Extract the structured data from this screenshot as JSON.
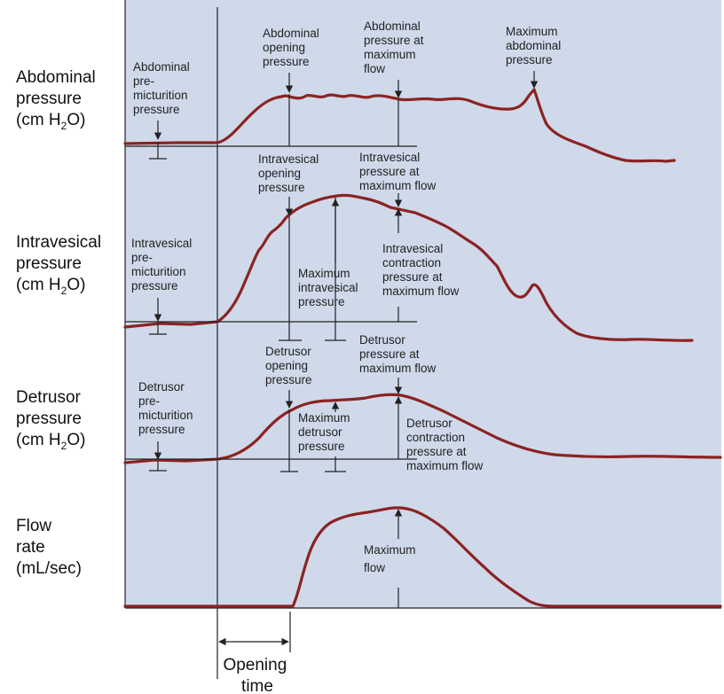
{
  "row_labels": [
    {
      "line1": "Abdominal",
      "line2": "pressure",
      "line3_pre": "(cm H",
      "line3_sub": "2",
      "line3_post": "O)"
    },
    {
      "line1": "Intravesical",
      "line2": "pressure",
      "line3_pre": "(cm H",
      "line3_sub": "2",
      "line3_post": "O)"
    },
    {
      "line1": "Detrusor",
      "line2": "pressure",
      "line3_pre": "(cm H",
      "line3_sub": "2",
      "line3_post": "O)"
    },
    {
      "line1": "Flow",
      "line2": "rate",
      "line3": "(mL/sec)"
    }
  ],
  "annotations": {
    "abd_premict": [
      "Abdominal",
      "pre-",
      "micturition",
      "pressure"
    ],
    "abd_opening": [
      "Abdominal",
      "opening",
      "pressure"
    ],
    "abd_maxflow": [
      "Abdominal",
      "pressure at",
      "maximum",
      "flow"
    ],
    "abd_max": [
      "Maximum",
      "abdominal",
      "pressure"
    ],
    "ives_premict": [
      "Intravesical",
      "pre-",
      "micturition",
      "pressure"
    ],
    "ives_opening": [
      "Intravesical",
      "opening",
      "pressure"
    ],
    "ives_maxflow": [
      "Intravesical",
      "pressure at",
      "maximum flow"
    ],
    "ives_max": [
      "Maximum",
      "intravesical",
      "pressure"
    ],
    "ives_contraction": [
      "Intravesical",
      "contraction",
      "pressure at",
      "maximum flow"
    ],
    "det_premict": [
      "Detrusor",
      "pre-",
      "micturition",
      "pressure"
    ],
    "det_opening": [
      "Detrusor",
      "opening",
      "pressure"
    ],
    "det_maxflow": [
      "Detrusor",
      "pressure at",
      "maximum flow"
    ],
    "det_max": [
      "Maximum",
      "detrusor",
      "pressure"
    ],
    "det_contraction": [
      "Detrusor",
      "contraction",
      "pressure at",
      "maximum flow"
    ],
    "max_flow": [
      "Maximum",
      "flow"
    ]
  },
  "opening_time": [
    "Opening",
    "time"
  ],
  "colors": {
    "background": "#cfd9ea",
    "curve": "#8b2323",
    "line": "#222222"
  }
}
